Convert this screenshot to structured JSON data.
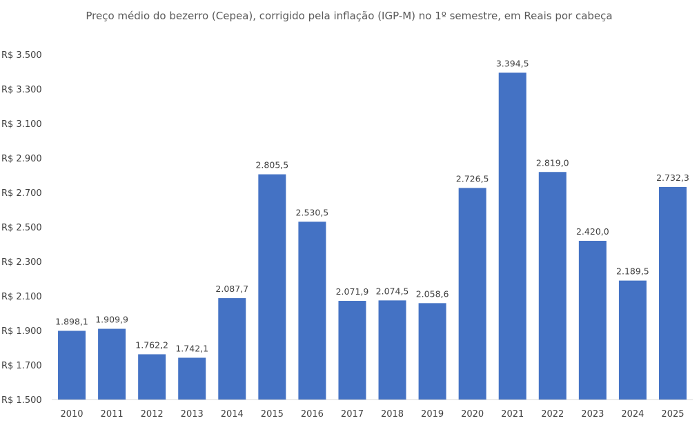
{
  "chart_data": {
    "type": "bar",
    "title": "Preço médio do bezerro (Cepea), corrigido pela inflação (IGP-M) no 1º semestre, em Reais por cabeça",
    "xlabel": "",
    "ylabel": "",
    "categories": [
      "2010",
      "2011",
      "2012",
      "2013",
      "2014",
      "2015",
      "2016",
      "2017",
      "2018",
      "2019",
      "2020",
      "2021",
      "2022",
      "2023",
      "2024",
      "2025"
    ],
    "series": [
      {
        "values": [
          1898.1,
          1909.9,
          1762.2,
          1742.1,
          2087.7,
          2805.5,
          2530.5,
          2071.9,
          2074.5,
          2058.6,
          2726.5,
          3394.5,
          2819.0,
          2420.0,
          2189.5,
          2732.3
        ],
        "color": "#4472c4"
      }
    ],
    "data_labels": [
      "1.898,1",
      "1.909,9",
      "1.762,2",
      "1.742,1",
      "2.087,7",
      "2.805,5",
      "2.530,5",
      "2.071,9",
      "2.074,5",
      "2.058,6",
      "2.726,5",
      "3.394,5",
      "2.819,0",
      "2.420,0",
      "2.189,5",
      "2.732,3"
    ],
    "ylim": [
      1500,
      3500
    ],
    "yticks": [
      1500,
      1700,
      1900,
      2100,
      2300,
      2500,
      2700,
      2900,
      3100,
      3300,
      3500
    ],
    "ytick_labels": [
      "R$ 1.500",
      "R$ 1.700",
      "R$ 1.900",
      "R$ 2.100",
      "R$ 2.300",
      "R$ 2.500",
      "R$ 2.700",
      "R$ 2.900",
      "R$ 3.100",
      "R$ 3.300",
      "R$ 3.500"
    ],
    "grid": false,
    "legend": "none",
    "colors": {
      "bar": "#4472c4",
      "axis": "#d9d9d9",
      "text": "#404040"
    }
  }
}
